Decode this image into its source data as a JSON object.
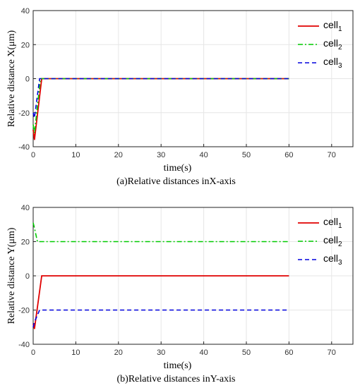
{
  "chart_data": [
    {
      "type": "line",
      "caption": "(a)Relative distances inX-axis",
      "xlabel": "time(s)",
      "ylabel": "Relative distance X(μm)",
      "xlim": [
        0,
        75
      ],
      "ylim": [
        -40,
        40
      ],
      "xticks": [
        0,
        10,
        20,
        30,
        40,
        50,
        60,
        70
      ],
      "yticks": [
        -40,
        -20,
        0,
        20,
        40
      ],
      "legend_position": "top-right",
      "series": [
        {
          "name": "cell",
          "sub": "1",
          "color": "#e00000",
          "dash": "solid",
          "points": [
            [
              0,
              -30
            ],
            [
              0.3,
              -36
            ],
            [
              2,
              0
            ],
            [
              60,
              0
            ]
          ]
        },
        {
          "name": "cell",
          "sub": "2",
          "color": "#00cc00",
          "dash": "dashdot",
          "points": [
            [
              0,
              -27
            ],
            [
              0.3,
              -32
            ],
            [
              1.7,
              0
            ],
            [
              60,
              0
            ]
          ]
        },
        {
          "name": "cell",
          "sub": "3",
          "color": "#0000dd",
          "dash": "dashed",
          "points": [
            [
              0,
              -20
            ],
            [
              0.3,
              -23
            ],
            [
              1.5,
              0
            ],
            [
              60,
              0
            ]
          ]
        }
      ]
    },
    {
      "type": "line",
      "caption": "(b)Relative distances inY-axis",
      "xlabel": "time(s)",
      "ylabel": "Relative distance Y(μm)",
      "xlim": [
        0,
        75
      ],
      "ylim": [
        -40,
        40
      ],
      "xticks": [
        0,
        10,
        20,
        30,
        40,
        50,
        60,
        70
      ],
      "yticks": [
        -40,
        -20,
        0,
        20,
        40
      ],
      "legend_position": "top-right",
      "series": [
        {
          "name": "cell",
          "sub": "1",
          "color": "#e00000",
          "dash": "solid",
          "points": [
            [
              0,
              -28
            ],
            [
              0.3,
              -31
            ],
            [
              2,
              0
            ],
            [
              60,
              0
            ]
          ]
        },
        {
          "name": "cell",
          "sub": "2",
          "color": "#00cc00",
          "dash": "dashdot",
          "points": [
            [
              0,
              31
            ],
            [
              0.3,
              28
            ],
            [
              1,
              20
            ],
            [
              60,
              20
            ]
          ]
        },
        {
          "name": "cell",
          "sub": "3",
          "color": "#0000dd",
          "dash": "dashed",
          "points": [
            [
              0,
              -30
            ],
            [
              0.3,
              -27
            ],
            [
              1.5,
              -20
            ],
            [
              60,
              -20
            ]
          ]
        }
      ]
    }
  ]
}
